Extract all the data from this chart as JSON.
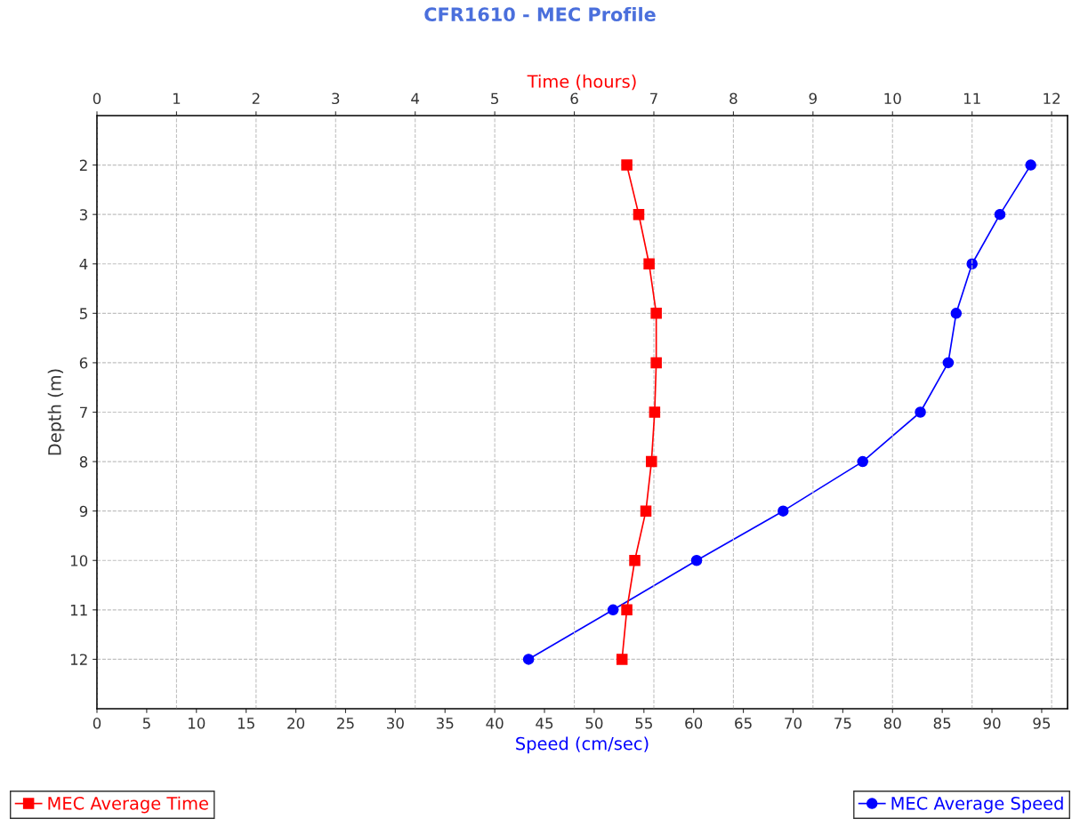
{
  "chart_data": {
    "type": "line",
    "orientation": "horizontal",
    "title": "CFR1610 - MEC Profile",
    "xlabel": "Speed (cm/sec)",
    "x2label": "Time (hours)",
    "ylabel": "Depth (m)",
    "x": [
      2,
      3,
      4,
      5,
      6,
      7,
      8,
      9,
      10,
      11,
      12
    ],
    "series": [
      {
        "name": "MEC Average Time",
        "color": "#ff0000",
        "axis": "x2",
        "marker": "square",
        "values": [
          6.66,
          6.81,
          6.94,
          7.03,
          7.03,
          7.01,
          6.97,
          6.9,
          6.76,
          6.66,
          6.6
        ]
      },
      {
        "name": "MEC Average Speed",
        "color": "#0000ff",
        "marker": "circle",
        "values": [
          93.9,
          90.8,
          88.0,
          86.4,
          85.6,
          82.8,
          77.0,
          69.0,
          60.3,
          51.9,
          43.4
        ]
      }
    ],
    "xlim": [
      0,
      97.6
    ],
    "xticks": [
      0,
      5,
      10,
      15,
      20,
      25,
      30,
      35,
      40,
      45,
      50,
      55,
      60,
      65,
      70,
      75,
      80,
      85,
      90,
      95
    ],
    "x2lim": [
      0,
      12.2
    ],
    "x2ticks": [
      0,
      1,
      2,
      3,
      4,
      5,
      6,
      7,
      8,
      9,
      10,
      11,
      12
    ],
    "ylim": [
      13,
      1
    ],
    "yticks": [
      2,
      3,
      4,
      5,
      6,
      7,
      8,
      9,
      10,
      11,
      12
    ],
    "grid": true,
    "legend": "bottom",
    "line_style": "solid"
  }
}
